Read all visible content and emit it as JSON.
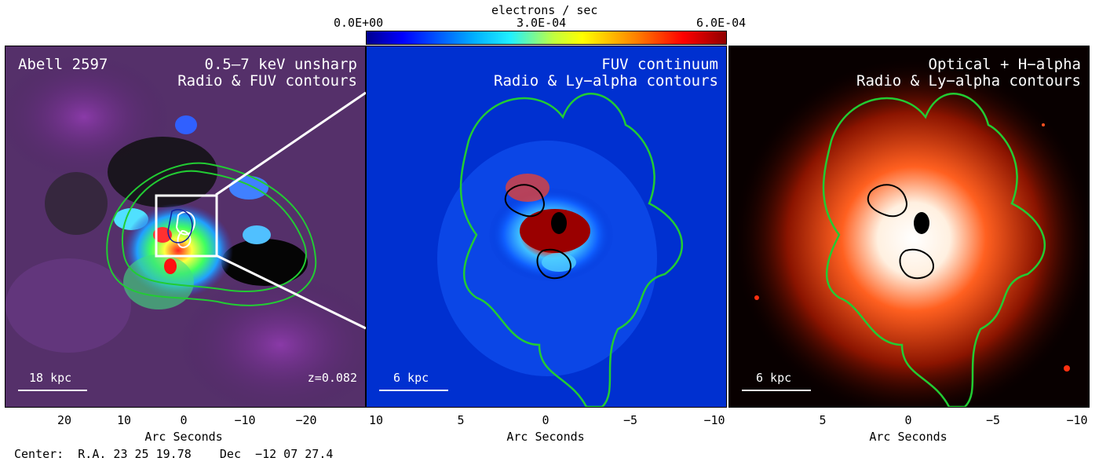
{
  "colorbar": {
    "title": "electrons / sec",
    "tick_min": "0.0E+00",
    "tick_mid": "3.0E-04",
    "tick_max": "6.0E-04",
    "colors": [
      "#00008f",
      "#0000ff",
      "#00b0ff",
      "#20f0ff",
      "#c0ff40",
      "#ffff00",
      "#ff8000",
      "#ff0000",
      "#900000"
    ]
  },
  "panels": [
    {
      "name": "xray",
      "title_left": "Abell 2597",
      "title_right_line1": "0.5–7 keV unsharp",
      "title_right_line2": "Radio & FUV contours",
      "scale_label": "18 kpc",
      "redshift": "z=0.082",
      "ticks": [
        "20",
        "10",
        "0",
        "−10",
        "−20"
      ],
      "axis_title": "Arc Seconds"
    },
    {
      "name": "fuv",
      "title_right_line1": "FUV continuum",
      "title_right_line2": "Radio & Ly−alpha contours",
      "scale_label": "6 kpc",
      "ticks": [
        "10",
        "5",
        "0",
        "−5",
        "−10"
      ],
      "axis_title": "Arc Seconds"
    },
    {
      "name": "optical",
      "title_right_line1": "Optical + H−alpha",
      "title_right_line2": "Radio & Ly−alpha contours",
      "scale_label": "6 kpc",
      "ticks": [
        "5",
        "0",
        "−5",
        "−10"
      ],
      "axis_title": "Arc Seconds"
    }
  ],
  "footer": {
    "center_text": "Center:  R.A. 23 25 19.78    Dec  −12 07 27.4"
  },
  "colors": {
    "contour_green": "#22cc33",
    "contour_black": "#000000",
    "zoom_box": "#ffffff"
  }
}
